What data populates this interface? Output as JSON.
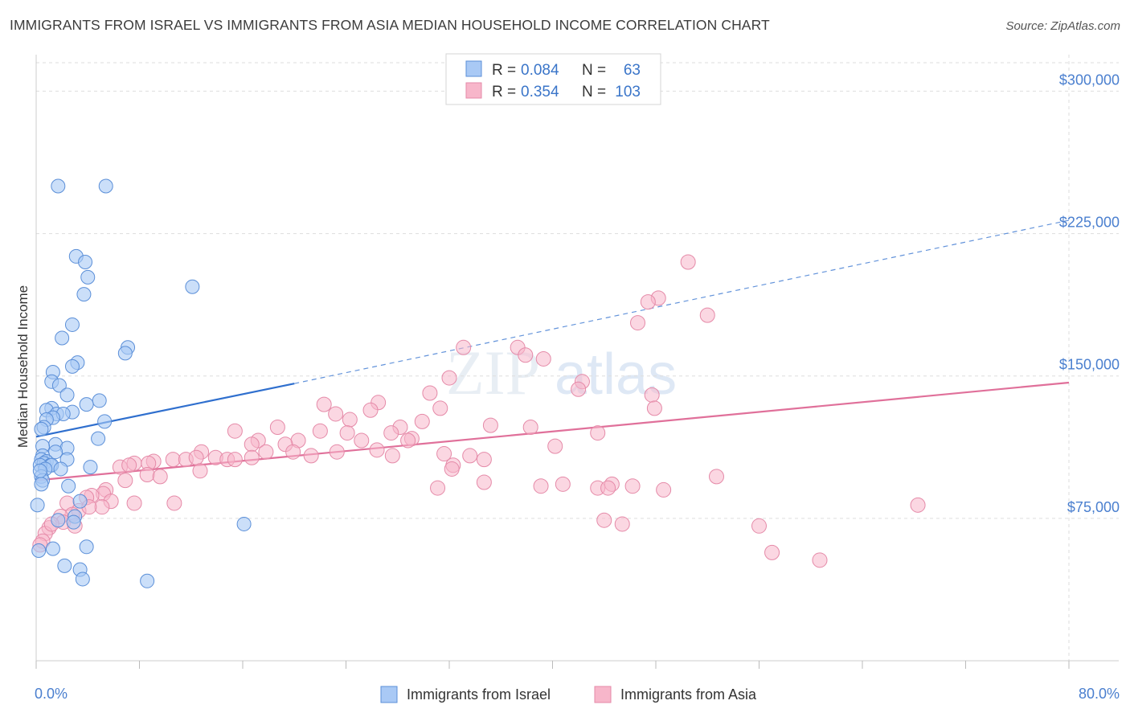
{
  "header": {
    "title": "IMMIGRANTS FROM ISRAEL VS IMMIGRANTS FROM ASIA MEDIAN HOUSEHOLD INCOME CORRELATION CHART",
    "source": "Source: ZipAtlas.com"
  },
  "legend": {
    "rows": [
      {
        "r_label": "R =",
        "r_value": "0.084",
        "n_label": "N =",
        "n_value": "63"
      },
      {
        "r_label": "R =",
        "r_value": "0.354",
        "n_label": "N =",
        "n_value": "103"
      }
    ]
  },
  "bottom_legend": [
    "Immigrants from Israel",
    "Immigrants from Asia"
  ],
  "watermark": {
    "zip": "ZIP",
    "atlas": "atlas"
  },
  "colors": {
    "israel_fill": "#a9c9f5",
    "israel_stroke": "#5b8fd8",
    "israel_line": "#2f6fce",
    "asia_fill": "#f7b6ca",
    "asia_stroke": "#e58aa8",
    "asia_line": "#e0709a",
    "tick_label": "#4a7fcf",
    "grid": "#dddddd"
  },
  "chart_data": {
    "type": "scatter",
    "title": "IMMIGRANTS FROM ISRAEL VS IMMIGRANTS FROM ASIA MEDIAN HOUSEHOLD INCOME CORRELATION CHART",
    "xlabel": "",
    "ylabel": "Median Household Income",
    "xlim": [
      0,
      80
    ],
    "ylim": [
      0,
      315000
    ],
    "x_tick_labels": [
      "0.0%",
      "80.0%"
    ],
    "y_ticks": [
      75000,
      150000,
      225000,
      300000
    ],
    "y_tick_labels": [
      "$75,000",
      "$150,000",
      "$225,000",
      "$300,000"
    ],
    "grid": true,
    "legend_position": "top-center",
    "series": [
      {
        "name": "Immigrants from Israel",
        "trend": {
          "x": [
            0,
            20
          ],
          "y": [
            118000,
            146000
          ],
          "dashed_extension_to": [
            80,
            232000
          ]
        },
        "points": [
          [
            1.7,
            250000
          ],
          [
            5.4,
            250000
          ],
          [
            3.1,
            213000
          ],
          [
            3.8,
            210000
          ],
          [
            4.0,
            202000
          ],
          [
            3.7,
            193000
          ],
          [
            12.1,
            197000
          ],
          [
            2.8,
            177000
          ],
          [
            2.0,
            170000
          ],
          [
            7.1,
            165000
          ],
          [
            6.9,
            162000
          ],
          [
            3.2,
            157000
          ],
          [
            2.8,
            155000
          ],
          [
            1.3,
            152000
          ],
          [
            1.2,
            147000
          ],
          [
            1.8,
            145000
          ],
          [
            2.4,
            140000
          ],
          [
            4.9,
            137000
          ],
          [
            3.9,
            135000
          ],
          [
            1.2,
            133000
          ],
          [
            0.8,
            132000
          ],
          [
            2.8,
            131000
          ],
          [
            1.6,
            130000
          ],
          [
            2.1,
            130000
          ],
          [
            1.3,
            128000
          ],
          [
            0.8,
            127000
          ],
          [
            5.3,
            126000
          ],
          [
            0.6,
            123000
          ],
          [
            0.4,
            122000
          ],
          [
            4.8,
            117000
          ],
          [
            1.5,
            114000
          ],
          [
            0.5,
            113000
          ],
          [
            2.4,
            112000
          ],
          [
            1.5,
            110000
          ],
          [
            0.5,
            108000
          ],
          [
            0.4,
            106000
          ],
          [
            2.4,
            106000
          ],
          [
            0.8,
            105000
          ],
          [
            0.6,
            104000
          ],
          [
            1.1,
            103000
          ],
          [
            1.2,
            103000
          ],
          [
            0.3,
            103000
          ],
          [
            4.2,
            102000
          ],
          [
            0.7,
            101000
          ],
          [
            1.9,
            101000
          ],
          [
            0.4,
            97000
          ],
          [
            0.5,
            95000
          ],
          [
            0.4,
            93000
          ],
          [
            2.5,
            92000
          ],
          [
            0.1,
            82000
          ],
          [
            3.4,
            84000
          ],
          [
            3.0,
            76000
          ],
          [
            1.7,
            74000
          ],
          [
            2.9,
            73000
          ],
          [
            16.1,
            72000
          ],
          [
            3.9,
            60000
          ],
          [
            1.3,
            59000
          ],
          [
            2.2,
            50000
          ],
          [
            3.4,
            48000
          ],
          [
            3.6,
            43000
          ],
          [
            8.6,
            42000
          ],
          [
            0.2,
            58000
          ],
          [
            0.3,
            100000
          ]
        ]
      },
      {
        "name": "Immigrants from Asia",
        "trend": {
          "x": [
            0,
            80
          ],
          "y": [
            95000,
            146500
          ]
        },
        "points": [
          [
            50.5,
            210000
          ],
          [
            48.2,
            191000
          ],
          [
            47.4,
            189000
          ],
          [
            52.0,
            182000
          ],
          [
            46.6,
            178000
          ],
          [
            33.1,
            165000
          ],
          [
            37.3,
            165000
          ],
          [
            37.9,
            161000
          ],
          [
            39.3,
            159000
          ],
          [
            32.0,
            149000
          ],
          [
            42.3,
            147000
          ],
          [
            30.5,
            141000
          ],
          [
            42.0,
            143000
          ],
          [
            47.7,
            140000
          ],
          [
            22.3,
            135000
          ],
          [
            26.5,
            136000
          ],
          [
            25.9,
            132000
          ],
          [
            31.3,
            133000
          ],
          [
            23.2,
            130000
          ],
          [
            24.3,
            127000
          ],
          [
            29.9,
            126000
          ],
          [
            47.9,
            133000
          ],
          [
            18.7,
            123000
          ],
          [
            28.2,
            123000
          ],
          [
            35.2,
            124000
          ],
          [
            38.3,
            123000
          ],
          [
            15.4,
            121000
          ],
          [
            22.0,
            121000
          ],
          [
            24.1,
            120000
          ],
          [
            27.5,
            120000
          ],
          [
            43.5,
            120000
          ],
          [
            29.1,
            117000
          ],
          [
            17.2,
            116000
          ],
          [
            20.3,
            116000
          ],
          [
            25.2,
            116000
          ],
          [
            28.8,
            116000
          ],
          [
            16.7,
            114000
          ],
          [
            19.3,
            114000
          ],
          [
            26.4,
            111000
          ],
          [
            40.2,
            113000
          ],
          [
            12.8,
            110000
          ],
          [
            17.8,
            110000
          ],
          [
            19.9,
            110000
          ],
          [
            23.3,
            110000
          ],
          [
            21.3,
            108000
          ],
          [
            31.6,
            109000
          ],
          [
            33.6,
            108000
          ],
          [
            13.9,
            107000
          ],
          [
            16.7,
            107000
          ],
          [
            27.6,
            108000
          ],
          [
            10.6,
            106000
          ],
          [
            11.6,
            106000
          ],
          [
            12.4,
            107000
          ],
          [
            14.8,
            106000
          ],
          [
            15.4,
            106000
          ],
          [
            34.7,
            106000
          ],
          [
            9.1,
            105000
          ],
          [
            7.6,
            104000
          ],
          [
            8.7,
            104000
          ],
          [
            32.3,
            103000
          ],
          [
            6.5,
            102000
          ],
          [
            7.2,
            103000
          ],
          [
            12.7,
            100000
          ],
          [
            32.2,
            101000
          ],
          [
            8.6,
            98000
          ],
          [
            9.6,
            97000
          ],
          [
            6.9,
            95000
          ],
          [
            34.7,
            94000
          ],
          [
            40.8,
            93000
          ],
          [
            44.6,
            93000
          ],
          [
            39.1,
            92000
          ],
          [
            46.2,
            92000
          ],
          [
            43.5,
            91000
          ],
          [
            44.3,
            91000
          ],
          [
            52.7,
            97000
          ],
          [
            31.1,
            91000
          ],
          [
            48.6,
            90000
          ],
          [
            5.4,
            90000
          ],
          [
            5.2,
            88000
          ],
          [
            4.3,
            87000
          ],
          [
            3.9,
            86000
          ],
          [
            5.8,
            84000
          ],
          [
            10.7,
            83000
          ],
          [
            2.4,
            83000
          ],
          [
            7.6,
            83000
          ],
          [
            68.3,
            82000
          ],
          [
            3.3,
            79000
          ],
          [
            5.1,
            81000
          ],
          [
            4.1,
            81000
          ],
          [
            2.8,
            77000
          ],
          [
            1.9,
            76000
          ],
          [
            2.1,
            73000
          ],
          [
            3.0,
            71000
          ],
          [
            1.0,
            70000
          ],
          [
            44.0,
            74000
          ],
          [
            45.4,
            72000
          ],
          [
            56.0,
            71000
          ],
          [
            0.7,
            67000
          ],
          [
            0.5,
            63000
          ],
          [
            57.0,
            57000
          ],
          [
            60.7,
            53000
          ],
          [
            0.3,
            61000
          ],
          [
            1.2,
            72000
          ]
        ]
      }
    ]
  }
}
